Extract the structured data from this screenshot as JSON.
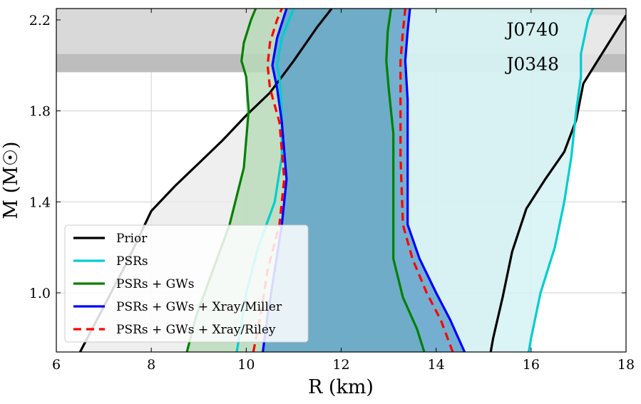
{
  "chart_data": {
    "type": "area",
    "title": "",
    "xlabel": "R (km)",
    "ylabel": "M (M☉)",
    "xlim": [
      6,
      18
    ],
    "ylim": [
      0.74,
      2.25
    ],
    "xticks": [
      6,
      8,
      10,
      12,
      14,
      16,
      18
    ],
    "yticks": [
      1.0,
      1.4,
      1.8,
      2.2
    ],
    "xtick_labels": [
      "6",
      "8",
      "10",
      "12",
      "14",
      "16",
      "18"
    ],
    "ytick_labels": [
      "1.0",
      "1.4",
      "1.8",
      "2.2"
    ],
    "grid": true,
    "legend_position": "lower-left",
    "bands": [
      {
        "name": "J0740",
        "label": "J0740",
        "ymin": 2.04,
        "ymax": 2.25,
        "color": "#d9d9d9"
      },
      {
        "name": "J0348",
        "label": "J0348",
        "ymin": 1.97,
        "ymax": 2.05,
        "color": "#bdbdbd"
      }
    ],
    "series": [
      {
        "name": "Prior",
        "color": "#000000",
        "fill": "#ebebeb",
        "dash": "solid",
        "left": [
          [
            6.5,
            0.74
          ],
          [
            7.0,
            0.94
          ],
          [
            7.5,
            1.14
          ],
          [
            8.0,
            1.36
          ],
          [
            8.5,
            1.47
          ],
          [
            9.0,
            1.57
          ],
          [
            9.5,
            1.67
          ],
          [
            10.0,
            1.78
          ],
          [
            10.5,
            1.88
          ],
          [
            11.0,
            2.02
          ],
          [
            11.5,
            2.17
          ],
          [
            11.8,
            2.25
          ]
        ],
        "right": [
          [
            15.15,
            0.74
          ],
          [
            15.2,
            0.8
          ],
          [
            15.4,
            0.98
          ],
          [
            15.6,
            1.18
          ],
          [
            15.9,
            1.37
          ],
          [
            16.3,
            1.5
          ],
          [
            16.7,
            1.62
          ],
          [
            16.95,
            1.76
          ],
          [
            17.1,
            1.92
          ],
          [
            17.4,
            2.02
          ],
          [
            17.7,
            2.12
          ],
          [
            18.0,
            2.22
          ]
        ]
      },
      {
        "name": "PSRs",
        "color": "#00cdd0",
        "fill": "#d2f1f3",
        "dash": "solid",
        "left": [
          [
            9.8,
            0.74
          ],
          [
            9.85,
            0.8
          ],
          [
            10.0,
            1.0
          ],
          [
            10.25,
            1.2
          ],
          [
            10.6,
            1.4
          ],
          [
            10.75,
            1.6
          ],
          [
            10.75,
            1.8
          ],
          [
            10.7,
            1.95
          ],
          [
            10.65,
            2.0
          ],
          [
            10.75,
            2.12
          ],
          [
            11.0,
            2.25
          ]
        ],
        "right": [
          [
            15.95,
            0.74
          ],
          [
            16.0,
            0.8
          ],
          [
            16.2,
            1.0
          ],
          [
            16.5,
            1.2
          ],
          [
            16.7,
            1.4
          ],
          [
            16.85,
            1.6
          ],
          [
            16.95,
            1.8
          ],
          [
            17.05,
            1.95
          ],
          [
            17.05,
            2.05
          ],
          [
            17.2,
            2.2
          ],
          [
            17.3,
            2.25
          ]
        ]
      },
      {
        "name": "PSRs + GWs",
        "color": "#008000",
        "fill": "#b8dbb8",
        "dash": "solid",
        "left": [
          [
            8.75,
            0.74
          ],
          [
            8.95,
            0.9
          ],
          [
            9.3,
            1.1
          ],
          [
            9.65,
            1.3
          ],
          [
            9.95,
            1.55
          ],
          [
            10.05,
            1.8
          ],
          [
            10.0,
            1.95
          ],
          [
            9.9,
            2.02
          ],
          [
            9.95,
            2.1
          ],
          [
            10.1,
            2.2
          ],
          [
            10.2,
            2.25
          ]
        ],
        "right": [
          [
            13.75,
            0.74
          ],
          [
            13.6,
            0.84
          ],
          [
            13.3,
            0.98
          ],
          [
            13.1,
            1.15
          ],
          [
            13.1,
            1.4
          ],
          [
            13.1,
            1.7
          ],
          [
            13.0,
            1.9
          ],
          [
            12.95,
            2.02
          ],
          [
            12.98,
            2.15
          ],
          [
            13.05,
            2.25
          ]
        ]
      },
      {
        "name": "PSRs + GWs + Xray/Miller",
        "color": "#0000ff",
        "fill": "#5b9fc8",
        "dash": "solid",
        "left": [
          [
            10.35,
            0.74
          ],
          [
            10.45,
            0.9
          ],
          [
            10.6,
            1.1
          ],
          [
            10.75,
            1.3
          ],
          [
            10.85,
            1.5
          ],
          [
            10.75,
            1.75
          ],
          [
            10.65,
            1.9
          ],
          [
            10.55,
            2.0
          ],
          [
            10.65,
            2.12
          ],
          [
            10.85,
            2.25
          ]
        ],
        "right": [
          [
            14.6,
            0.74
          ],
          [
            14.3,
            0.88
          ],
          [
            14.0,
            1.0
          ],
          [
            13.65,
            1.15
          ],
          [
            13.4,
            1.3
          ],
          [
            13.4,
            1.6
          ],
          [
            13.4,
            1.85
          ],
          [
            13.35,
            2.02
          ],
          [
            13.4,
            2.15
          ],
          [
            13.45,
            2.25
          ]
        ]
      },
      {
        "name": "PSRs + GWs + Xray/Riley",
        "color": "#ff0000",
        "fill": "none",
        "dash": "dashed",
        "left": [
          [
            10.15,
            0.74
          ],
          [
            10.3,
            0.9
          ],
          [
            10.45,
            1.1
          ],
          [
            10.7,
            1.3
          ],
          [
            10.8,
            1.5
          ],
          [
            10.7,
            1.75
          ],
          [
            10.5,
            1.9
          ],
          [
            10.45,
            2.0
          ],
          [
            10.5,
            2.1
          ],
          [
            10.65,
            2.2
          ],
          [
            10.75,
            2.25
          ]
        ],
        "right": [
          [
            14.35,
            0.74
          ],
          [
            14.1,
            0.88
          ],
          [
            13.8,
            1.0
          ],
          [
            13.5,
            1.15
          ],
          [
            13.3,
            1.3
          ],
          [
            13.25,
            1.6
          ],
          [
            13.25,
            1.85
          ],
          [
            13.25,
            2.02
          ],
          [
            13.3,
            2.15
          ],
          [
            13.35,
            2.25
          ]
        ]
      }
    ]
  },
  "colors": {
    "grid": "#d0d0d0",
    "axis": "#000000",
    "legend_border": "#cccccc"
  }
}
